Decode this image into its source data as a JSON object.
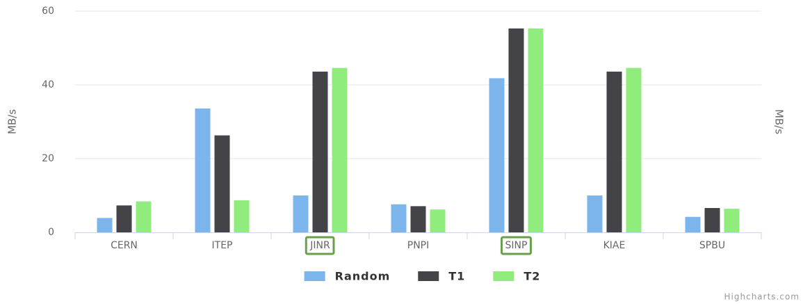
{
  "chart_data": {
    "type": "bar",
    "credits": "Highcharts.com",
    "y_axis_title": "MB/s",
    "y2_axis_title": "MB/s",
    "categories": [
      "CERN",
      "ITEP",
      "JINR",
      "PNPI",
      "SINP",
      "KIAE",
      "SPBU"
    ],
    "series": [
      {
        "name": "Random",
        "color": "#7cb5ec",
        "values": [
          3.9,
          33.6,
          10,
          7.6,
          41.8,
          10,
          4.2
        ]
      },
      {
        "name": "T1",
        "color": "#434348",
        "values": [
          7.3,
          26.3,
          43.6,
          7.1,
          55.3,
          43.6,
          6.6
        ]
      },
      {
        "name": "T2",
        "color": "#90ed7d",
        "values": [
          8.4,
          8.7,
          44.6,
          6.2,
          55.3,
          44.6,
          6.4
        ]
      }
    ],
    "ylim": [
      0,
      60
    ],
    "yticks": [
      0,
      20,
      40,
      60
    ],
    "grid": true,
    "legend": "bottom",
    "highlight": {
      "categories": [
        2,
        4
      ],
      "color": "#6a9f4b"
    }
  }
}
